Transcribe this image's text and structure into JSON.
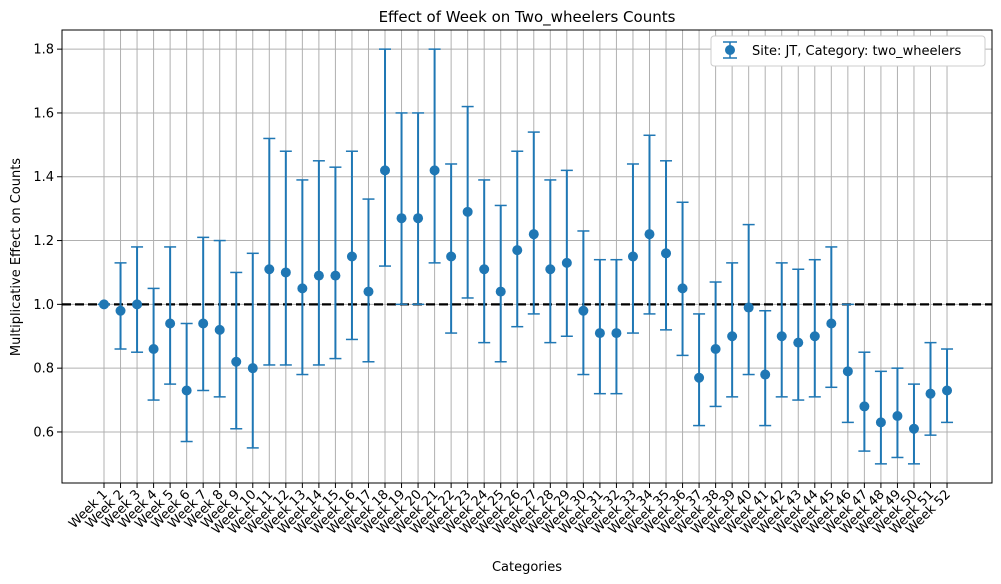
{
  "chart_data": {
    "type": "scatter",
    "title": "Effect of Week on Two_wheelers Counts",
    "xlabel": "Categories",
    "ylabel": "Multiplicative Effect on Counts",
    "ylim": [
      0.44,
      1.86
    ],
    "yticks": [
      0.6,
      0.8,
      1.0,
      1.2,
      1.4,
      1.6,
      1.8
    ],
    "grid": true,
    "legend_position": "top-right",
    "reference_line": 1.0,
    "categories": [
      "Week 1",
      "Week 2",
      "Week 3",
      "Week 4",
      "Week 5",
      "Week 6",
      "Week 7",
      "Week 8",
      "Week 9",
      "Week 10",
      "Week 11",
      "Week 12",
      "Week 13",
      "Week 14",
      "Week 15",
      "Week 16",
      "Week 17",
      "Week 18",
      "Week 19",
      "Week 20",
      "Week 21",
      "Week 22",
      "Week 23",
      "Week 24",
      "Week 25",
      "Week 26",
      "Week 27",
      "Week 28",
      "Week 29",
      "Week 30",
      "Week 31",
      "Week 32",
      "Week 33",
      "Week 34",
      "Week 35",
      "Week 36",
      "Week 37",
      "Week 38",
      "Week 39",
      "Week 40",
      "Week 41",
      "Week 42",
      "Week 43",
      "Week 44",
      "Week 45",
      "Week 46",
      "Week 47",
      "Week 48",
      "Week 49",
      "Week 50",
      "Week 51",
      "Week 52"
    ],
    "series": [
      {
        "name": "Site: JT, Category: two_wheelers",
        "color": "#1f77b4",
        "values": [
          1.0,
          0.98,
          1.0,
          0.86,
          0.94,
          0.73,
          0.94,
          0.92,
          0.82,
          0.8,
          1.11,
          1.1,
          1.05,
          1.09,
          1.09,
          1.15,
          1.04,
          1.42,
          1.27,
          1.27,
          1.42,
          1.15,
          1.29,
          1.11,
          1.04,
          1.17,
          1.22,
          1.11,
          1.13,
          0.98,
          0.91,
          0.91,
          1.15,
          1.22,
          1.16,
          1.05,
          0.77,
          0.86,
          0.9,
          0.99,
          0.78,
          0.9,
          0.88,
          0.9,
          0.94,
          0.79,
          0.68,
          0.63,
          0.65,
          0.61,
          0.72,
          0.73
        ],
        "lower": [
          1.0,
          0.86,
          0.85,
          0.7,
          0.75,
          0.57,
          0.73,
          0.71,
          0.61,
          0.55,
          0.81,
          0.81,
          0.78,
          0.81,
          0.83,
          0.89,
          0.82,
          1.12,
          1.0,
          1.0,
          1.13,
          0.91,
          1.02,
          0.88,
          0.82,
          0.93,
          0.97,
          0.88,
          0.9,
          0.78,
          0.72,
          0.72,
          0.91,
          0.97,
          0.92,
          0.84,
          0.62,
          0.68,
          0.71,
          0.78,
          0.62,
          0.71,
          0.7,
          0.71,
          0.74,
          0.63,
          0.54,
          0.5,
          0.52,
          0.5,
          0.59,
          0.63
        ],
        "upper": [
          1.0,
          1.13,
          1.18,
          1.05,
          1.18,
          0.94,
          1.21,
          1.2,
          1.1,
          1.16,
          1.52,
          1.48,
          1.39,
          1.45,
          1.43,
          1.48,
          1.33,
          1.8,
          1.6,
          1.6,
          1.8,
          1.44,
          1.62,
          1.39,
          1.31,
          1.48,
          1.54,
          1.39,
          1.42,
          1.23,
          1.14,
          1.14,
          1.44,
          1.53,
          1.45,
          1.32,
          0.97,
          1.07,
          1.13,
          1.25,
          0.98,
          1.13,
          1.11,
          1.14,
          1.18,
          1.0,
          0.85,
          0.79,
          0.8,
          0.75,
          0.88,
          0.86
        ]
      }
    ]
  }
}
